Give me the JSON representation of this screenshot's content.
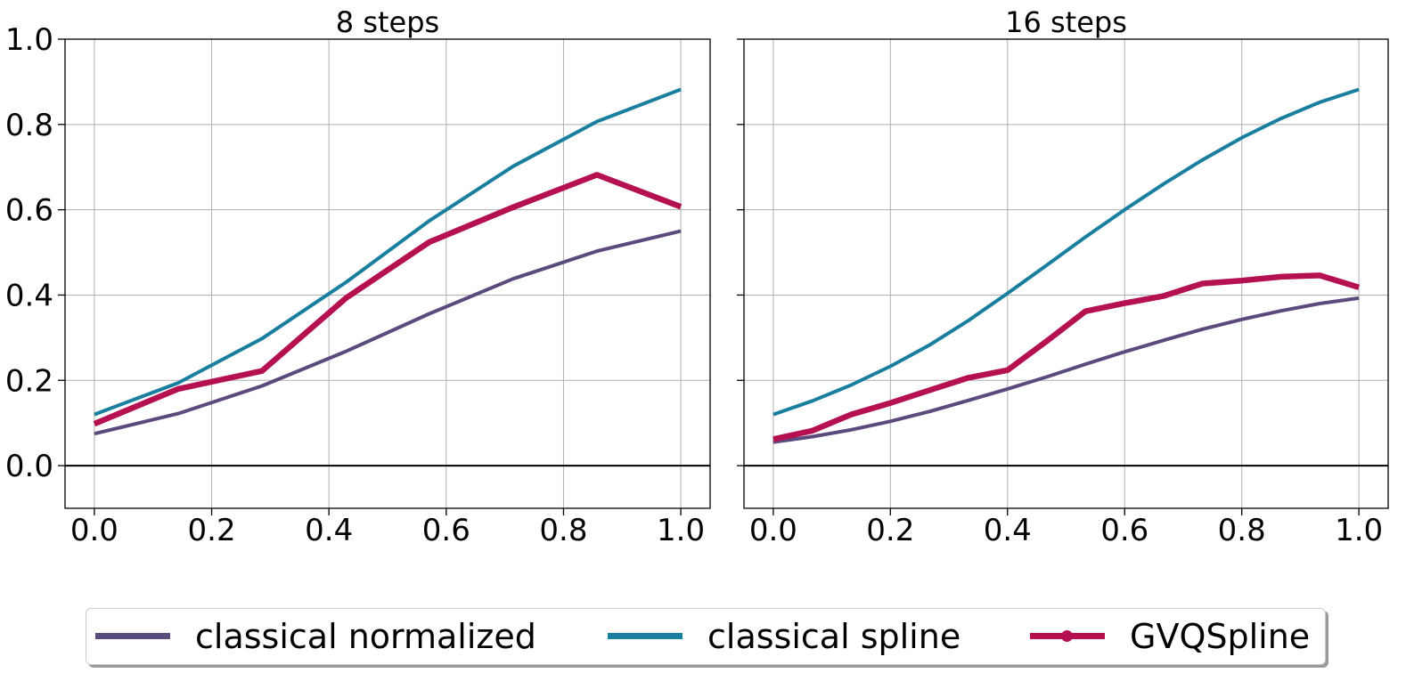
{
  "chart_data": [
    {
      "type": "line",
      "title": "8 steps",
      "xlabel": "",
      "ylabel": "",
      "xlim": [
        -0.05,
        1.05
      ],
      "ylim": [
        -0.1,
        1.0
      ],
      "xticks": [
        "0.0",
        "0.2",
        "0.4",
        "0.6",
        "0.8",
        "1.0"
      ],
      "yticks": [
        "0.0",
        "0.2",
        "0.4",
        "0.6",
        "0.8",
        "1.0"
      ],
      "grid": true,
      "series": [
        {
          "name": "classical normalized",
          "color": "#5b4a7e",
          "x": [
            0.0,
            0.143,
            0.286,
            0.429,
            0.571,
            0.714,
            0.857,
            1.0
          ],
          "y": [
            0.075,
            0.122,
            0.187,
            0.268,
            0.356,
            0.438,
            0.503,
            0.55
          ]
        },
        {
          "name": "classical spline",
          "color": "#1a7f9e",
          "x": [
            0.0,
            0.143,
            0.286,
            0.429,
            0.571,
            0.714,
            0.857,
            1.0
          ],
          "y": [
            0.12,
            0.194,
            0.298,
            0.43,
            0.574,
            0.702,
            0.807,
            0.882
          ]
        },
        {
          "name": "GVQSpline",
          "color": "#b5104f",
          "x": [
            0.0,
            0.143,
            0.286,
            0.429,
            0.571,
            0.714,
            0.857,
            1.0
          ],
          "y": [
            0.098,
            0.18,
            0.222,
            0.393,
            0.524,
            0.606,
            0.682,
            0.607
          ]
        }
      ]
    },
    {
      "type": "line",
      "title": "16 steps",
      "xlabel": "",
      "ylabel": "",
      "xlim": [
        -0.05,
        1.05
      ],
      "ylim": [
        -0.1,
        1.0
      ],
      "xticks": [
        "0.0",
        "0.2",
        "0.4",
        "0.6",
        "0.8",
        "1.0"
      ],
      "yticks": [
        "0.0",
        "0.2",
        "0.4",
        "0.6",
        "0.8",
        "1.0"
      ],
      "grid": true,
      "series": [
        {
          "name": "classical normalized",
          "color": "#5b4a7e",
          "x": [
            0.0,
            0.067,
            0.133,
            0.2,
            0.267,
            0.333,
            0.4,
            0.467,
            0.533,
            0.6,
            0.667,
            0.733,
            0.8,
            0.867,
            0.933,
            1.0
          ],
          "y": [
            0.055,
            0.068,
            0.084,
            0.104,
            0.127,
            0.153,
            0.18,
            0.208,
            0.238,
            0.267,
            0.294,
            0.32,
            0.343,
            0.363,
            0.38,
            0.393
          ]
        },
        {
          "name": "classical spline",
          "color": "#1a7f9e",
          "x": [
            0.0,
            0.067,
            0.133,
            0.2,
            0.267,
            0.333,
            0.4,
            0.467,
            0.533,
            0.6,
            0.667,
            0.733,
            0.8,
            0.867,
            0.933,
            1.0
          ],
          "y": [
            0.12,
            0.152,
            0.189,
            0.233,
            0.283,
            0.34,
            0.404,
            0.47,
            0.536,
            0.6,
            0.661,
            0.717,
            0.769,
            0.814,
            0.852,
            0.882
          ]
        },
        {
          "name": "GVQSpline",
          "color": "#b5104f",
          "x": [
            0.0,
            0.067,
            0.133,
            0.2,
            0.267,
            0.333,
            0.4,
            0.467,
            0.533,
            0.6,
            0.667,
            0.733,
            0.8,
            0.867,
            0.933,
            1.0
          ],
          "y": [
            0.062,
            0.082,
            0.12,
            0.147,
            0.177,
            0.206,
            0.224,
            0.292,
            0.362,
            0.381,
            0.398,
            0.427,
            0.434,
            0.443,
            0.446,
            0.418
          ]
        }
      ]
    }
  ],
  "legend": {
    "placement": "bottom-center",
    "items": [
      {
        "label": "classical normalized",
        "color": "#5b4a7e",
        "marker": false
      },
      {
        "label": "classical spline",
        "color": "#1a7f9e",
        "marker": false
      },
      {
        "label": "GVQSpline",
        "color": "#b5104f",
        "marker": true
      }
    ]
  }
}
